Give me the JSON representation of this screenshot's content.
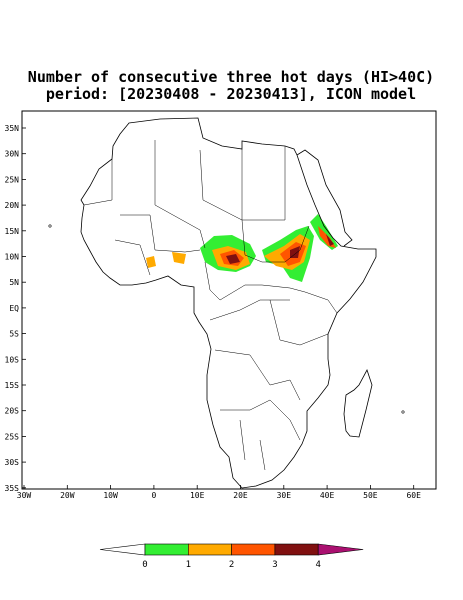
{
  "map": {
    "title": [
      "Number of consecutive three hot days (HI>40C)",
      "period: [20230408 - 20230413], ICON model"
    ],
    "lat_labels": [
      "35N",
      "30N",
      "25N",
      "20N",
      "15N",
      "10N",
      "5N",
      "EQ",
      "5S",
      "10S",
      "15S",
      "20S",
      "25S",
      "30S",
      "35S"
    ],
    "lon_labels": [
      "30W",
      "20W",
      "10W",
      "0",
      "10E",
      "20E",
      "30E",
      "40E",
      "50E",
      "60E"
    ],
    "colorbar": {
      "labels": [
        "0",
        "1",
        "2",
        "3",
        "4"
      ],
      "colors": [
        "#ffffff",
        "#33ee33",
        "#ffaa00",
        "#ff5500",
        "#801010",
        "#aa1070"
      ]
    }
  }
}
